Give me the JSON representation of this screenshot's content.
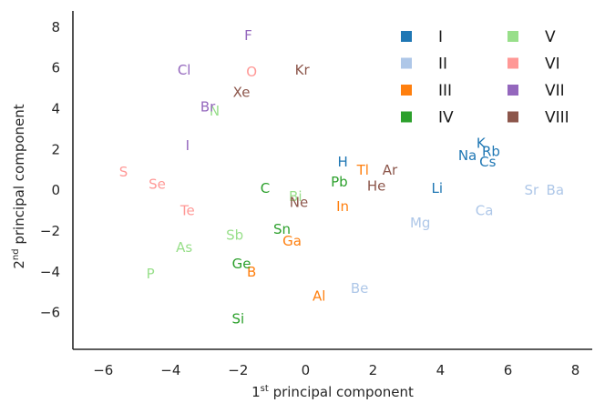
{
  "chart_data": {
    "type": "scatter",
    "title": "",
    "xlabel_main": "1",
    "xlabel_sup": "st",
    "xlabel_rest": " principal component",
    "ylabel_main": "2",
    "ylabel_sup": "nd",
    "ylabel_rest": " principal component",
    "xlim": [
      -6.9,
      8.5
    ],
    "ylim": [
      -7.8,
      8.8
    ],
    "xticks": [
      -6,
      -4,
      -2,
      0,
      2,
      4,
      6,
      8
    ],
    "yticks": [
      -6,
      -4,
      -2,
      0,
      2,
      4,
      6,
      8
    ],
    "xtick_labels": [
      "−6",
      "−4",
      "−2",
      "0",
      "2",
      "4",
      "6",
      "8"
    ],
    "ytick_labels": [
      "−6",
      "−4",
      "−2",
      "0",
      "2",
      "4",
      "6",
      "8"
    ],
    "grid": false,
    "legend_placement": "top-right",
    "legend_columns": 2,
    "groups": [
      {
        "name": "I",
        "color": "#1f77b4"
      },
      {
        "name": "II",
        "color": "#aec7e8"
      },
      {
        "name": "III",
        "color": "#ff7f0e"
      },
      {
        "name": "IV",
        "color": "#2ca02c"
      },
      {
        "name": "V",
        "color": "#98df8a"
      },
      {
        "name": "VI",
        "color": "#ff9896"
      },
      {
        "name": "VII",
        "color": "#9467bd"
      },
      {
        "name": "VIII",
        "color": "#8c564b"
      }
    ],
    "points": [
      {
        "label": "H",
        "x": 1.1,
        "y": 1.4,
        "group": 0
      },
      {
        "label": "Li",
        "x": 3.9,
        "y": 0.1,
        "group": 0
      },
      {
        "label": "Na",
        "x": 4.8,
        "y": 1.7,
        "group": 0
      },
      {
        "label": "K",
        "x": 5.2,
        "y": 2.3,
        "group": 0
      },
      {
        "label": "Rb",
        "x": 5.5,
        "y": 1.9,
        "group": 0
      },
      {
        "label": "Cs",
        "x": 5.4,
        "y": 1.4,
        "group": 0
      },
      {
        "label": "Be",
        "x": 1.6,
        "y": -4.8,
        "group": 1
      },
      {
        "label": "Mg",
        "x": 3.4,
        "y": -1.6,
        "group": 1
      },
      {
        "label": "Ca",
        "x": 5.3,
        "y": -1.0,
        "group": 1
      },
      {
        "label": "Sr",
        "x": 6.7,
        "y": 0.0,
        "group": 1
      },
      {
        "label": "Ba",
        "x": 7.4,
        "y": 0.0,
        "group": 1
      },
      {
        "label": "B",
        "x": -1.6,
        "y": -4.0,
        "group": 2
      },
      {
        "label": "Al",
        "x": 0.4,
        "y": -5.2,
        "group": 2
      },
      {
        "label": "Ga",
        "x": -0.4,
        "y": -2.5,
        "group": 2
      },
      {
        "label": "In",
        "x": 1.1,
        "y": -0.8,
        "group": 2
      },
      {
        "label": "Tl",
        "x": 1.7,
        "y": 1.0,
        "group": 2
      },
      {
        "label": "C",
        "x": -1.2,
        "y": 0.1,
        "group": 3
      },
      {
        "label": "Si",
        "x": -2.0,
        "y": -6.3,
        "group": 3
      },
      {
        "label": "Ge",
        "x": -1.9,
        "y": -3.6,
        "group": 3
      },
      {
        "label": "Sn",
        "x": -0.7,
        "y": -1.9,
        "group": 3
      },
      {
        "label": "Pb",
        "x": 1.0,
        "y": 0.4,
        "group": 3
      },
      {
        "label": "N",
        "x": -2.7,
        "y": 3.9,
        "group": 4
      },
      {
        "label": "P",
        "x": -4.6,
        "y": -4.1,
        "group": 4
      },
      {
        "label": "As",
        "x": -3.6,
        "y": -2.8,
        "group": 4
      },
      {
        "label": "Sb",
        "x": -2.1,
        "y": -2.2,
        "group": 4
      },
      {
        "label": "Bi",
        "x": -0.3,
        "y": -0.3,
        "group": 4
      },
      {
        "label": "O",
        "x": -1.6,
        "y": 5.8,
        "group": 5
      },
      {
        "label": "S",
        "x": -5.4,
        "y": 0.9,
        "group": 5
      },
      {
        "label": "Se",
        "x": -4.4,
        "y": 0.3,
        "group": 5
      },
      {
        "label": "Te",
        "x": -3.5,
        "y": -1.0,
        "group": 5
      },
      {
        "label": "F",
        "x": -1.7,
        "y": 7.6,
        "group": 6
      },
      {
        "label": "Cl",
        "x": -3.6,
        "y": 5.9,
        "group": 6
      },
      {
        "label": "Br",
        "x": -2.9,
        "y": 4.1,
        "group": 6
      },
      {
        "label": "I",
        "x": -3.5,
        "y": 2.2,
        "group": 6
      },
      {
        "label": "Kr",
        "x": -0.1,
        "y": 5.9,
        "group": 7
      },
      {
        "label": "Xe",
        "x": -1.9,
        "y": 4.8,
        "group": 7
      },
      {
        "label": "Ar",
        "x": 2.5,
        "y": 1.0,
        "group": 7
      },
      {
        "label": "He",
        "x": 2.1,
        "y": 0.2,
        "group": 7
      },
      {
        "label": "Ne",
        "x": -0.2,
        "y": -0.6,
        "group": 7
      }
    ]
  }
}
